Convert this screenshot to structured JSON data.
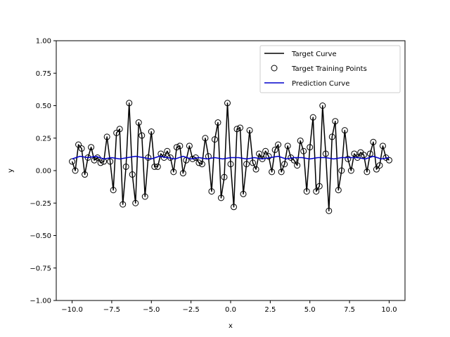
{
  "chart_data": {
    "type": "line",
    "title": "",
    "xlabel": "x",
    "ylabel": "y",
    "xlim": [
      -11,
      11
    ],
    "ylim": [
      -1.0,
      1.0
    ],
    "grid": false,
    "legend_position": "top-right",
    "x_ticks": [
      -10.0,
      -7.5,
      -5.0,
      -2.5,
      0.0,
      2.5,
      5.0,
      7.5,
      10.0
    ],
    "x_tick_labels": [
      "−10.0",
      "−7.5",
      "−5.0",
      "−2.5",
      "0.0",
      "2.5",
      "5.0",
      "7.5",
      "10.0"
    ],
    "y_ticks": [
      -1.0,
      -0.75,
      -0.5,
      -0.25,
      0.0,
      0.25,
      0.5,
      0.75,
      1.0
    ],
    "y_tick_labels": [
      "−1.00",
      "−0.75",
      "−0.50",
      "−0.25",
      "0.00",
      "0.25",
      "0.50",
      "0.75",
      "1.00"
    ],
    "series": [
      {
        "name": "Target Curve",
        "kind": "line",
        "color": "#000000",
        "x": [
          -10.0,
          -9.8,
          -9.6,
          -9.4,
          -9.2,
          -9.0,
          -8.8,
          -8.6,
          -8.4,
          -8.2,
          -8.0,
          -7.8,
          -7.6,
          -7.4,
          -7.2,
          -7.0,
          -6.8,
          -6.6,
          -6.4,
          -6.2,
          -6.0,
          -5.8,
          -5.6,
          -5.4,
          -5.2,
          -5.0,
          -4.8,
          -4.6,
          -4.4,
          -4.2,
          -4.0,
          -3.8,
          -3.6,
          -3.4,
          -3.2,
          -3.0,
          -2.8,
          -2.6,
          -2.4,
          -2.2,
          -2.0,
          -1.8,
          -1.6,
          -1.4,
          -1.2,
          -1.0,
          -0.8,
          -0.6,
          -0.4,
          -0.2,
          0.0,
          0.2,
          0.4,
          0.6,
          0.8,
          1.0,
          1.2,
          1.4,
          1.6,
          1.8,
          2.0,
          2.2,
          2.4,
          2.6,
          2.8,
          3.0,
          3.2,
          3.4,
          3.6,
          3.8,
          4.0,
          4.2,
          4.4,
          4.6,
          4.8,
          5.0,
          5.2,
          5.4,
          5.6,
          5.8,
          6.0,
          6.2,
          6.4,
          6.6,
          6.8,
          7.0,
          7.2,
          7.4,
          7.6,
          7.8,
          8.0,
          8.2,
          8.4,
          8.6,
          8.8,
          9.0,
          9.2,
          9.4,
          9.6,
          9.8,
          10.0
        ],
        "y": [
          0.07,
          0.0,
          0.2,
          0.17,
          -0.03,
          0.1,
          0.18,
          0.08,
          0.1,
          0.06,
          0.07,
          0.26,
          0.07,
          -0.15,
          0.29,
          0.32,
          -0.26,
          0.03,
          0.52,
          -0.03,
          -0.25,
          0.37,
          0.27,
          -0.2,
          0.1,
          0.3,
          0.03,
          0.03,
          0.13,
          0.1,
          0.15,
          0.1,
          -0.01,
          0.18,
          0.19,
          -0.02,
          0.08,
          0.19,
          0.09,
          0.1,
          0.06,
          0.05,
          0.25,
          0.11,
          -0.16,
          0.24,
          0.37,
          -0.21,
          -0.05,
          0.52,
          0.05,
          -0.28,
          0.32,
          0.33,
          -0.18,
          0.05,
          0.31,
          0.06,
          0.01,
          0.13,
          0.09,
          0.15,
          0.11,
          -0.01,
          0.16,
          0.2,
          -0.01,
          0.05,
          0.19,
          0.1,
          0.08,
          0.04,
          0.23,
          0.15,
          -0.16,
          0.18,
          0.41,
          -0.16,
          -0.12,
          0.5,
          0.13,
          -0.31,
          0.26,
          0.38,
          -0.15,
          -0.0,
          0.31,
          0.09,
          0.0,
          0.13,
          0.1,
          0.14,
          0.12,
          -0.01,
          0.13,
          0.22,
          0.01,
          0.04,
          0.19,
          0.1,
          0.08
        ]
      },
      {
        "name": "Target Training Points",
        "kind": "scatter",
        "color": "#000000",
        "marker": "open-circle"
      },
      {
        "name": "Prediction Curve",
        "kind": "line",
        "color": "#0000cc",
        "x": [
          -10.0,
          -9.5,
          -9.0,
          -8.5,
          -8.0,
          -7.5,
          -7.0,
          -6.5,
          -6.0,
          -5.5,
          -5.0,
          -4.5,
          -4.0,
          -3.5,
          -3.0,
          -2.5,
          -2.0,
          -1.5,
          -1.0,
          -0.5,
          0.0,
          0.5,
          1.0,
          1.5,
          2.0,
          2.5,
          3.0,
          3.5,
          4.0,
          4.5,
          5.0,
          5.5,
          6.0,
          6.5,
          7.0,
          7.5,
          8.0,
          8.5,
          9.0,
          9.5,
          10.0
        ],
        "y": [
          0.09,
          0.11,
          0.1,
          0.11,
          0.09,
          0.1,
          0.09,
          0.1,
          0.11,
          0.1,
          0.09,
          0.11,
          0.1,
          0.09,
          0.11,
          0.09,
          0.1,
          0.09,
          0.1,
          0.09,
          0.1,
          0.1,
          0.09,
          0.1,
          0.09,
          0.1,
          0.11,
          0.09,
          0.1,
          0.1,
          0.09,
          0.1,
          0.1,
          0.09,
          0.1,
          0.1,
          0.1,
          0.09,
          0.11,
          0.09,
          0.1
        ]
      }
    ]
  }
}
